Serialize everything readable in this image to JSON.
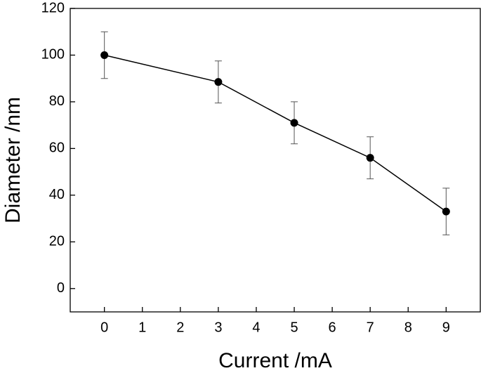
{
  "chart_data": {
    "type": "line",
    "x_label": "Current /mA",
    "y_label": "Diameter /nm",
    "x": [
      0,
      3,
      5,
      7,
      9
    ],
    "series": [
      {
        "name": "Diameter",
        "color": "#000000",
        "values": [
          100,
          88.5,
          71,
          56,
          33
        ],
        "errors": [
          10,
          9,
          9,
          9,
          10
        ]
      }
    ],
    "xlim": [
      -0.9,
      9.9
    ],
    "xticks": [
      0,
      1,
      2,
      3,
      4,
      5,
      6,
      7,
      8,
      9
    ],
    "ylim": [
      -10,
      120
    ],
    "yticks": [
      0,
      20,
      40,
      60,
      80,
      100,
      120
    ]
  }
}
